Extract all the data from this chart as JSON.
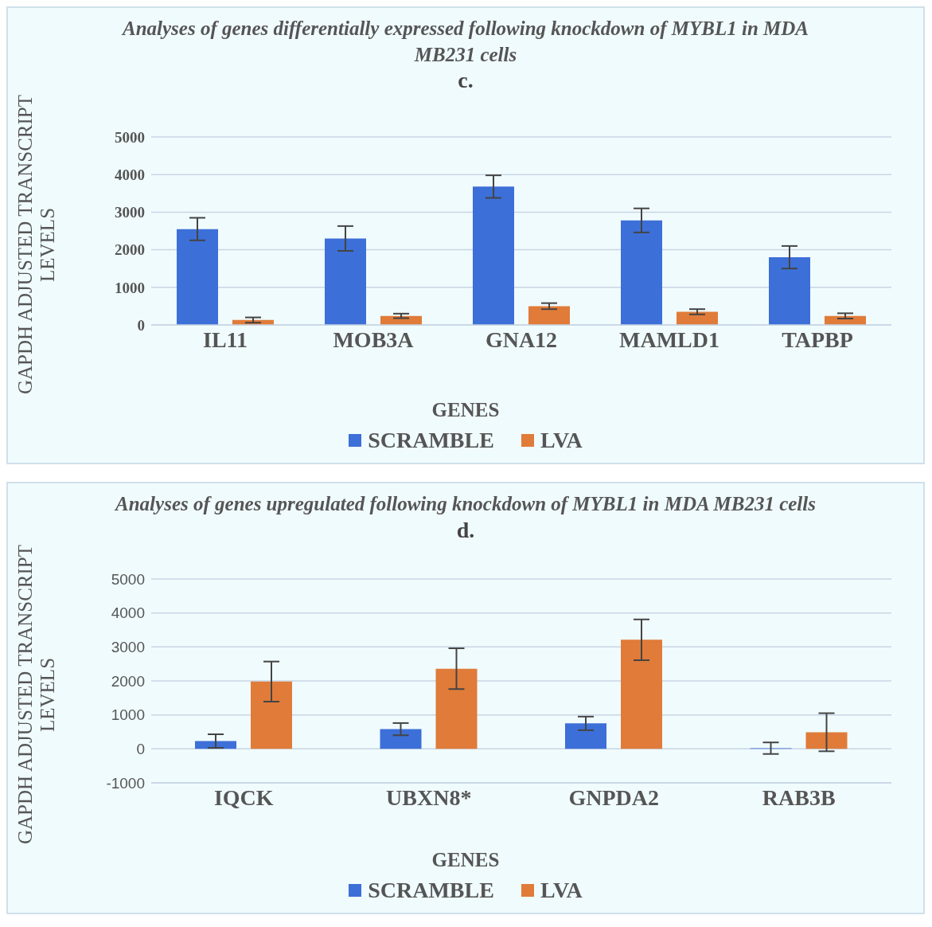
{
  "chart_data": [
    {
      "type": "bar",
      "title": "Analyses of genes differentially expressed following knockdown of MYBL1 in MDA MB231 cells",
      "subtitle": "c.",
      "xlabel": "GENES",
      "ylabel": "GAPDH ADJUSTED TRANSCRIPT LEVELS",
      "categories": [
        "IL11",
        "MOB3A",
        "GNA12",
        "MAMLD1",
        "TAPBP"
      ],
      "series": [
        {
          "name": "SCRAMBLE",
          "color": "#3c6fd8",
          "values": [
            2550,
            2300,
            3680,
            2780,
            1800
          ],
          "errors": [
            300,
            330,
            300,
            320,
            300
          ]
        },
        {
          "name": "LVA",
          "color": "#e07b39",
          "values": [
            130,
            240,
            500,
            350,
            240
          ],
          "errors": [
            70,
            60,
            80,
            70,
            70
          ]
        }
      ],
      "ylim": [
        0,
        5000
      ],
      "yticks": [
        0,
        1000,
        2000,
        3000,
        4000,
        5000
      ],
      "grid": "y",
      "legend": "bottom"
    },
    {
      "type": "bar",
      "title": "Analyses of genes upregulated following knockdown of MYBL1 in MDA MB231 cells",
      "subtitle": "d.",
      "xlabel": "GENES",
      "ylabel": "GAPDH ADJUSTED TRANSCRIPT LEVELS",
      "categories": [
        "IQCK",
        "UBXN8*",
        "GNPDA2",
        "RAB3B"
      ],
      "series": [
        {
          "name": "SCRAMBLE",
          "color": "#3c6fd8",
          "values": [
            230,
            580,
            750,
            20
          ],
          "errors": [
            200,
            180,
            200,
            170
          ]
        },
        {
          "name": "LVA",
          "color": "#e07b39",
          "values": [
            1980,
            2360,
            3210,
            490
          ],
          "errors": [
            590,
            600,
            600,
            560
          ]
        }
      ],
      "ylim": [
        -1000,
        5000
      ],
      "yticks": [
        -1000,
        0,
        1000,
        2000,
        3000,
        4000,
        5000
      ],
      "grid": "y",
      "legend": "bottom"
    }
  ]
}
